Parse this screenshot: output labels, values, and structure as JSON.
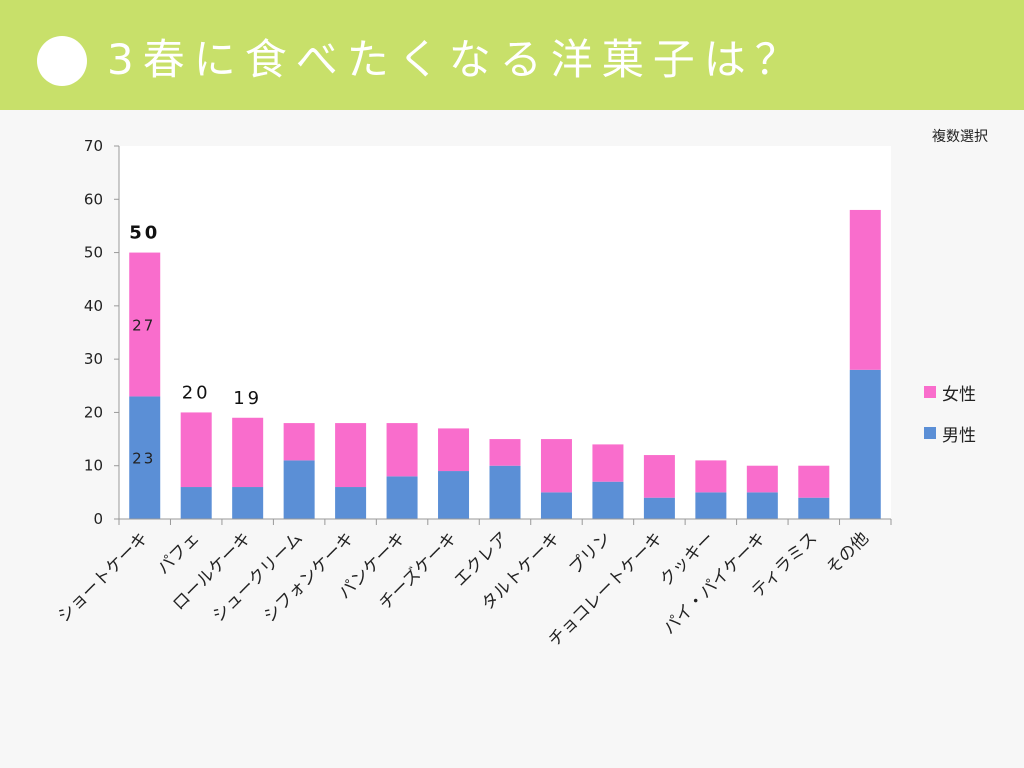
{
  "header": {
    "title": "3春に食べたくなる洋菓子は？"
  },
  "note": "複数選択",
  "colors": {
    "header_bg": "#c8e06a",
    "male": "#5b8fd6",
    "female": "#f96dcc"
  },
  "chart_data": {
    "type": "bar",
    "stacked": true,
    "title": "3春に食べたくなる洋菓子は？",
    "categories": [
      "ショートケーキ",
      "パフェ",
      "ロールケーキ",
      "シュークリーム",
      "シフォンケーキ",
      "パンケーキ",
      "チーズケーキ",
      "エクレア",
      "タルトケーキ",
      "プリン",
      "チョコレートケーキ",
      "クッキー",
      "パイ・パイケーキ",
      "ティラミス",
      "その他"
    ],
    "series": [
      {
        "name": "男性",
        "color": "#5b8fd6",
        "values": [
          23,
          6,
          6,
          11,
          6,
          8,
          9,
          10,
          5,
          7,
          4,
          5,
          5,
          4,
          28
        ]
      },
      {
        "name": "女性",
        "color": "#f96dcc",
        "values": [
          27,
          14,
          13,
          7,
          12,
          10,
          8,
          5,
          10,
          7,
          8,
          6,
          5,
          6,
          30
        ]
      }
    ],
    "y_ticks": [
      "0",
      "10",
      "20",
      "30",
      "40",
      "50",
      "60",
      "70"
    ],
    "ylim": [
      0,
      70
    ],
    "annotations": [
      {
        "category_index": 0,
        "series_index": 0,
        "text": "23"
      },
      {
        "category_index": 0,
        "series_index": 1,
        "text": "27"
      }
    ],
    "totals": [
      {
        "category_index": 0,
        "text": "50",
        "bold": true
      },
      {
        "category_index": 1,
        "text": "20",
        "bold": false
      },
      {
        "category_index": 2,
        "text": "19",
        "bold": false
      }
    ],
    "legend": [
      {
        "label": "女性",
        "color": "#f96dcc"
      },
      {
        "label": "男性",
        "color": "#5b8fd6"
      }
    ],
    "legend_position": "right",
    "grid": false
  }
}
